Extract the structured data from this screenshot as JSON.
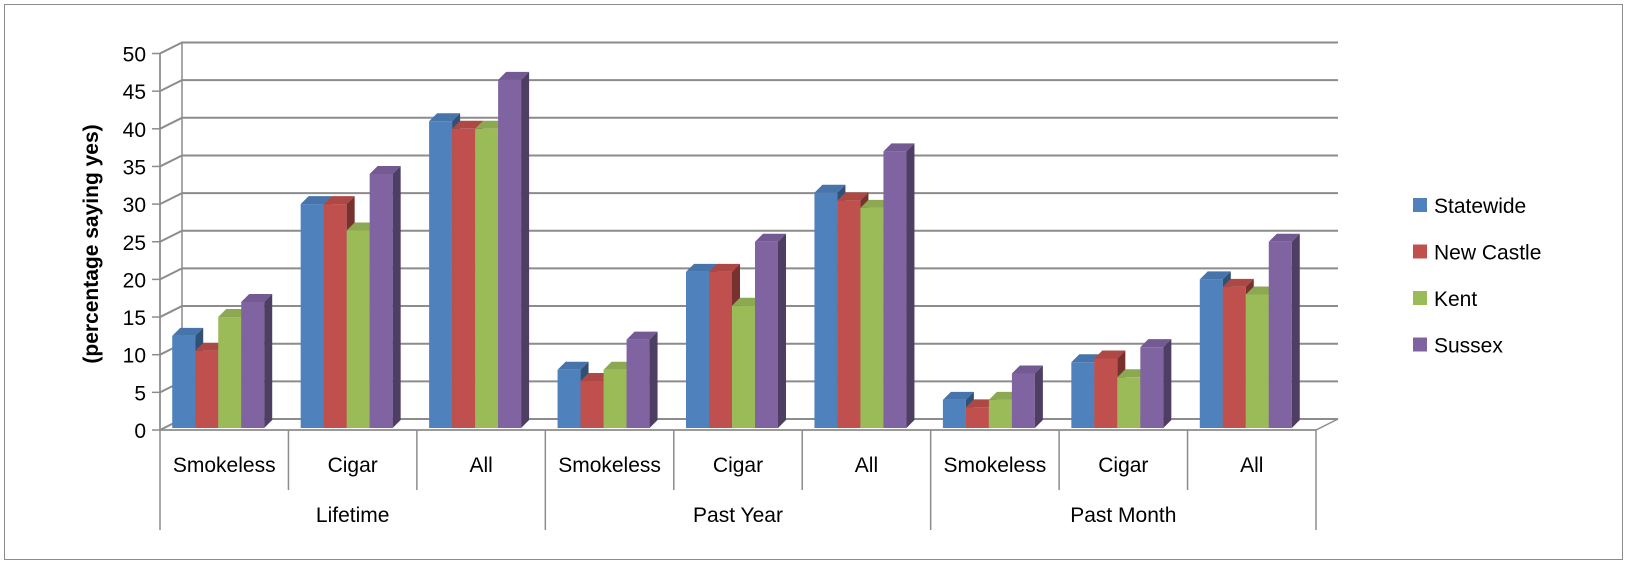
{
  "chart_data": {
    "type": "bar",
    "title": "",
    "xlabel": "",
    "ylabel": "(percentage saying yes)",
    "ylim": [
      0,
      50
    ],
    "yticks": [
      0,
      5,
      10,
      15,
      20,
      25,
      30,
      35,
      40,
      45,
      50
    ],
    "grid": true,
    "style": "3d-clustered-column",
    "legend_position": "right",
    "groups": [
      {
        "label": "Lifetime",
        "categories": [
          "Smokeless",
          "Cigar",
          "All"
        ]
      },
      {
        "label": "Past Year",
        "categories": [
          "Smokeless",
          "Cigar",
          "All"
        ]
      },
      {
        "label": "Past Month",
        "categories": [
          "Smokeless",
          "Cigar",
          "All"
        ]
      }
    ],
    "categories": [
      "Smokeless",
      "Cigar",
      "All",
      "Smokeless",
      "Cigar",
      "All",
      "Smokeless",
      "Cigar",
      "All"
    ],
    "series": [
      {
        "name": "Statewide",
        "color": "#4f81bd",
        "values": [
          12.5,
          30,
          41,
          8,
          21,
          31.5,
          4,
          9,
          20
        ]
      },
      {
        "name": "New Castle",
        "color": "#c0504d",
        "values": [
          10.5,
          30,
          40,
          6.5,
          21,
          30.5,
          3,
          9.5,
          19
        ]
      },
      {
        "name": "Kent",
        "color": "#9bbb59",
        "values": [
          15,
          26.5,
          40,
          8,
          16.5,
          29.5,
          4,
          7,
          18
        ]
      },
      {
        "name": "Sussex",
        "color": "#8064a2",
        "values": [
          17,
          34,
          46.5,
          12,
          25,
          37,
          7.5,
          11,
          25
        ]
      }
    ]
  }
}
